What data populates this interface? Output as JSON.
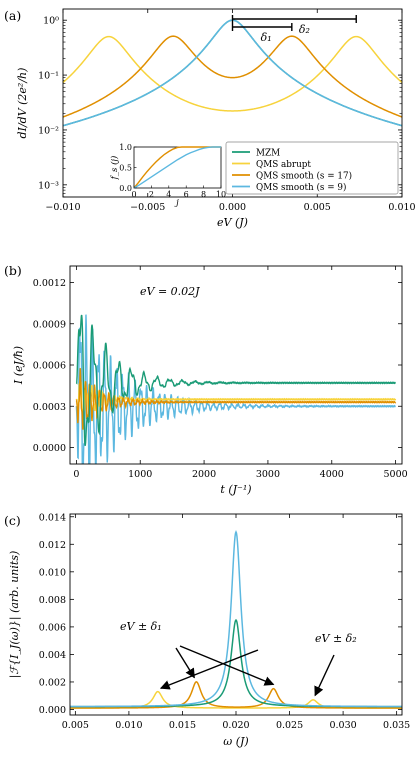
{
  "colors": {
    "mzm": "#1a9b76",
    "qms_abrupt": "#f7d33c",
    "qms_smooth_17": "#e08f00",
    "qms_smooth_9": "#5cb8e0"
  },
  "chart_data": [
    {
      "type": "line",
      "panel_label": "(a)",
      "xlabel": "eV (J)",
      "ylabel": "dI/dV (2e²/h)",
      "yscale": "log",
      "xlim": [
        -0.01,
        0.01
      ],
      "ylim": [
        0.0006,
        1.6
      ],
      "x_ticks": [
        "−0.010",
        "−0.005",
        "0.000",
        "0.005",
        "0.010"
      ],
      "x_tick_values": [
        -0.01,
        -0.005,
        0.0,
        0.005,
        0.01
      ],
      "y_ticks": [
        "10⁻³",
        "10⁻²",
        "10⁻¹",
        "10⁰"
      ],
      "y_tick_values": [
        0.001,
        0.01,
        0.1,
        1
      ],
      "legend": {
        "placement": "lower-right",
        "entries": [
          "MZM",
          "QMS abrupt",
          "QMS smooth (s = 17)",
          "QMS smooth (s = 9)"
        ]
      },
      "annotations": [
        {
          "label": "δ₁",
          "from": 0.0,
          "to": 0.0035
        },
        {
          "label": "δ₂",
          "from": 0.0,
          "to": 0.0073
        }
      ],
      "series": [
        {
          "name": "MZM",
          "peak_positions": [
            0.0
          ],
          "peak_heights": [
            1.0
          ],
          "halfwidth": 0.0011
        },
        {
          "name": "QMS abrupt",
          "peak_positions": [
            -0.0073,
            0.0073
          ],
          "peak_heights": [
            0.5,
            0.5
          ],
          "halfwidth": 0.0011
        },
        {
          "name": "QMS smooth (s = 17)",
          "peak_positions": [
            -0.0035,
            0.0035
          ],
          "peak_heights": [
            0.5,
            0.5
          ],
          "halfwidth": 0.0011
        },
        {
          "name": "QMS smooth (s = 9)",
          "peak_positions": [
            0.0
          ],
          "peak_heights": [
            1.0
          ],
          "halfwidth": 0.0011
        }
      ],
      "inset": {
        "xlabel": "j",
        "ylabel": "f_s (j)",
        "xlim": [
          0,
          10
        ],
        "ylim": [
          0,
          1.0
        ],
        "x_ticks": [
          "0",
          "2",
          "4",
          "6",
          "8",
          "10"
        ],
        "x_tick_values": [
          0,
          2,
          4,
          6,
          8,
          10
        ],
        "y_ticks": [
          "0.0",
          "0.5",
          "1.0"
        ],
        "y_tick_values": [
          0,
          0.5,
          1.0
        ],
        "series": [
          {
            "name": "QMS smooth (s = 17)",
            "x": [
              0,
              0.5,
              1,
              1.5,
              2,
              2.5,
              3,
              3.5,
              4,
              4.5,
              5,
              5.5,
              6,
              6.5,
              7,
              7.5,
              8,
              8.5,
              9,
              9.5,
              10
            ],
            "y": [
              0.0,
              0.13,
              0.27,
              0.4,
              0.52,
              0.63,
              0.73,
              0.82,
              0.89,
              0.95,
              0.99,
              1.0,
              1.0,
              1.0,
              1.0,
              1.0,
              1.0,
              1.0,
              1.0,
              1.0,
              1.0
            ]
          },
          {
            "name": "QMS smooth (s = 9)",
            "x": [
              0,
              0.5,
              1,
              1.5,
              2,
              2.5,
              3,
              3.5,
              4,
              4.5,
              5,
              5.5,
              6,
              6.5,
              7,
              7.5,
              8,
              8.5,
              9,
              9.5,
              10
            ],
            "y": [
              0.0,
              0.06,
              0.13,
              0.2,
              0.27,
              0.34,
              0.41,
              0.48,
              0.55,
              0.62,
              0.69,
              0.75,
              0.81,
              0.86,
              0.9,
              0.94,
              0.97,
              0.99,
              1.0,
              1.0,
              1.0
            ]
          }
        ]
      }
    },
    {
      "type": "line",
      "panel_label": "(b)",
      "annotation": "eV = 0.02J",
      "xlabel": "t (J⁻¹)",
      "ylabel": "I (eJ/ħ)",
      "xlim": [
        -100,
        5100
      ],
      "ylim": [
        -0.00012,
        0.00132
      ],
      "x_ticks": [
        "0",
        "1000",
        "2000",
        "3000",
        "4000",
        "5000"
      ],
      "x_tick_values": [
        0,
        1000,
        2000,
        3000,
        4000,
        5000
      ],
      "y_ticks": [
        "0.0000",
        "0.0003",
        "0.0006",
        "0.0009",
        "0.0012"
      ],
      "y_tick_values": [
        0,
        0.0003,
        0.0006,
        0.0009,
        0.0012
      ],
      "series": [
        {
          "name": "MZM",
          "steady": 0.00047,
          "initial_peak": 0.00107,
          "osc_period": 200,
          "decay": 450
        },
        {
          "name": "QMS abrupt",
          "steady": 0.00035,
          "initial_peak": 0.00052,
          "osc_period": 90,
          "decay": 300
        },
        {
          "name": "QMS smooth (s = 17)",
          "steady": 0.00033,
          "initial_peak": 0.00055,
          "osc_period": 75,
          "decay": 350
        },
        {
          "name": "QMS smooth (s = 9)",
          "steady": 0.0003,
          "initial_peak": 0.00095,
          "osc_period": 95,
          "decay": 650
        }
      ]
    },
    {
      "type": "line",
      "panel_label": "(c)",
      "xlabel": "ω (J)",
      "ylabel": "|ℱ{I_J(ω)}| (arb. units)",
      "xlim": [
        0.0045,
        0.0355
      ],
      "ylim": [
        -0.0004,
        0.0142
      ],
      "x_ticks": [
        "0.005",
        "0.010",
        "0.015",
        "0.020",
        "0.025",
        "0.030",
        "0.035"
      ],
      "x_tick_values": [
        0.005,
        0.01,
        0.015,
        0.02,
        0.025,
        0.03,
        0.035
      ],
      "y_ticks": [
        "0.000",
        "0.002",
        "0.004",
        "0.006",
        "0.008",
        "0.010",
        "0.012",
        "0.014"
      ],
      "y_tick_values": [
        0,
        0.002,
        0.004,
        0.006,
        0.008,
        0.01,
        0.012,
        0.014
      ],
      "annotations": [
        {
          "label": "eV ± δ₁",
          "targets": [
            0.0163,
            0.0235
          ]
        },
        {
          "label": "eV ± δ₂",
          "targets": [
            0.0127,
            0.0272
          ]
        }
      ],
      "series": [
        {
          "name": "MZM",
          "peaks": [
            [
              0.02,
              0.0063
            ]
          ],
          "baseline": 0.0002
        },
        {
          "name": "QMS abrupt",
          "peaks": [
            [
              0.0127,
              0.0012
            ],
            [
              0.0272,
              0.0006
            ]
          ],
          "baseline": 0.0001
        },
        {
          "name": "QMS smooth (s = 17)",
          "peaks": [
            [
              0.0163,
              0.0019
            ],
            [
              0.0235,
              0.0014
            ]
          ],
          "baseline": 0.0001
        },
        {
          "name": "QMS smooth (s = 9)",
          "peaks": [
            [
              0.02,
              0.0127
            ]
          ],
          "baseline": 0.0002
        }
      ]
    }
  ]
}
